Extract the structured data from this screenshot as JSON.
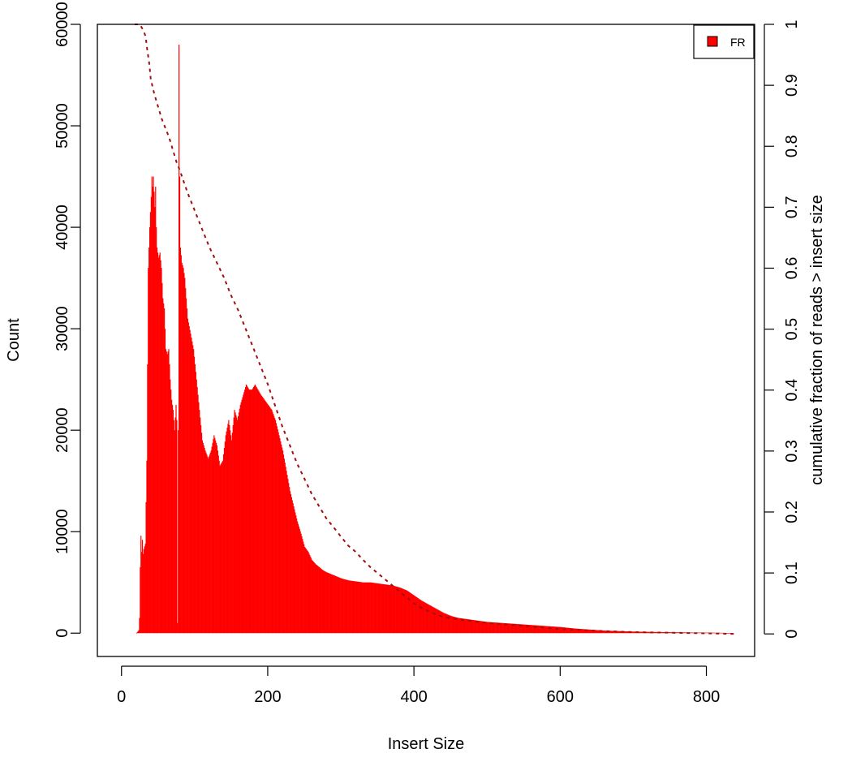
{
  "chart_data": {
    "type": "bar",
    "title": "",
    "xlabel": "Insert Size",
    "ylabel": "Count",
    "y2label": "cumulative fraction of reads > insert size",
    "xlim": [
      -33,
      866
    ],
    "ylim": [
      -2300,
      60000
    ],
    "y2lim": [
      -0.037,
      1.0
    ],
    "xticks": [
      0,
      200,
      400,
      600,
      800
    ],
    "yticks": [
      0,
      10000,
      20000,
      30000,
      40000,
      50000,
      60000
    ],
    "y2ticks": [
      0,
      0.1,
      0.2,
      0.3,
      0.4,
      0.5,
      0.6,
      0.7,
      0.8,
      0.9,
      1
    ],
    "legend": {
      "position": "top-right",
      "entries": [
        "FR"
      ]
    },
    "colors": {
      "bars": "#ff0000",
      "cumulative": "#a01010",
      "legend_box": "#ff0000"
    },
    "series": [
      {
        "name": "FR",
        "kind": "histogram",
        "points": [
          [
            20,
            0
          ],
          [
            23,
            300
          ],
          [
            24,
            1500
          ],
          [
            25,
            6500
          ],
          [
            26,
            9600
          ],
          [
            27,
            8000
          ],
          [
            28,
            9200
          ],
          [
            29,
            7800
          ],
          [
            30,
            8300
          ],
          [
            32,
            8800
          ],
          [
            34,
            17000
          ],
          [
            36,
            36000
          ],
          [
            38,
            40000
          ],
          [
            40,
            43000
          ],
          [
            41,
            45000
          ],
          [
            42,
            44000
          ],
          [
            43,
            45000
          ],
          [
            44,
            43500
          ],
          [
            45,
            42000
          ],
          [
            46,
            44000
          ],
          [
            47,
            40000
          ],
          [
            48,
            38000
          ],
          [
            50,
            37000
          ],
          [
            52,
            37500
          ],
          [
            54,
            36000
          ],
          [
            56,
            33000
          ],
          [
            58,
            32000
          ],
          [
            60,
            28000
          ],
          [
            62,
            27500
          ],
          [
            64,
            28000
          ],
          [
            66,
            25000
          ],
          [
            68,
            23000
          ],
          [
            70,
            22000
          ],
          [
            72,
            20000
          ],
          [
            74,
            22500
          ],
          [
            75,
            21000
          ],
          [
            76,
            1000
          ],
          [
            77,
            20000
          ],
          [
            78,
            58000
          ],
          [
            79,
            45000
          ],
          [
            80,
            38000
          ],
          [
            82,
            36500
          ],
          [
            84,
            36000
          ],
          [
            86,
            35000
          ],
          [
            88,
            33000
          ],
          [
            90,
            31000
          ],
          [
            94,
            29500
          ],
          [
            98,
            28000
          ],
          [
            102,
            25000
          ],
          [
            106,
            22000
          ],
          [
            110,
            19000
          ],
          [
            114,
            18000
          ],
          [
            118,
            17200
          ],
          [
            122,
            18000
          ],
          [
            126,
            19500
          ],
          [
            130,
            18500
          ],
          [
            134,
            16500
          ],
          [
            138,
            17000
          ],
          [
            142,
            19500
          ],
          [
            146,
            21000
          ],
          [
            150,
            19000
          ],
          [
            154,
            22000
          ],
          [
            158,
            21000
          ],
          [
            162,
            22500
          ],
          [
            166,
            23500
          ],
          [
            170,
            24500
          ],
          [
            174,
            24000
          ],
          [
            178,
            24000
          ],
          [
            182,
            24500
          ],
          [
            186,
            24000
          ],
          [
            190,
            23500
          ],
          [
            195,
            23000
          ],
          [
            200,
            22500
          ],
          [
            205,
            22000
          ],
          [
            210,
            21000
          ],
          [
            215,
            19500
          ],
          [
            220,
            18000
          ],
          [
            225,
            16000
          ],
          [
            230,
            14000
          ],
          [
            235,
            12500
          ],
          [
            240,
            11000
          ],
          [
            245,
            9800
          ],
          [
            250,
            8500
          ],
          [
            255,
            8000
          ],
          [
            260,
            7200
          ],
          [
            265,
            6800
          ],
          [
            270,
            6500
          ],
          [
            275,
            6200
          ],
          [
            280,
            6000
          ],
          [
            290,
            5700
          ],
          [
            300,
            5400
          ],
          [
            310,
            5200
          ],
          [
            320,
            5100
          ],
          [
            330,
            5000
          ],
          [
            340,
            5000
          ],
          [
            350,
            4900
          ],
          [
            360,
            4800
          ],
          [
            370,
            4700
          ],
          [
            380,
            4500
          ],
          [
            390,
            4200
          ],
          [
            400,
            3700
          ],
          [
            410,
            3200
          ],
          [
            420,
            2800
          ],
          [
            430,
            2400
          ],
          [
            440,
            2000
          ],
          [
            450,
            1700
          ],
          [
            460,
            1500
          ],
          [
            470,
            1400
          ],
          [
            480,
            1300
          ],
          [
            490,
            1200
          ],
          [
            500,
            1100
          ],
          [
            520,
            1000
          ],
          [
            540,
            900
          ],
          [
            560,
            800
          ],
          [
            580,
            700
          ],
          [
            600,
            600
          ],
          [
            620,
            450
          ],
          [
            640,
            350
          ],
          [
            660,
            250
          ],
          [
            680,
            200
          ],
          [
            700,
            150
          ],
          [
            720,
            120
          ],
          [
            740,
            100
          ],
          [
            760,
            80
          ],
          [
            780,
            60
          ],
          [
            800,
            50
          ],
          [
            820,
            30
          ],
          [
            835,
            0
          ]
        ]
      },
      {
        "name": "",
        "kind": "cumulative",
        "axis": "right",
        "points": [
          [
            18,
            1.0
          ],
          [
            25,
            1.0
          ],
          [
            30,
            0.99
          ],
          [
            33,
            0.98
          ],
          [
            35,
            0.96
          ],
          [
            38,
            0.935
          ],
          [
            40,
            0.91
          ],
          [
            45,
            0.885
          ],
          [
            50,
            0.865
          ],
          [
            55,
            0.845
          ],
          [
            60,
            0.83
          ],
          [
            65,
            0.815
          ],
          [
            70,
            0.795
          ],
          [
            75,
            0.775
          ],
          [
            80,
            0.76
          ],
          [
            90,
            0.725
          ],
          [
            100,
            0.695
          ],
          [
            110,
            0.665
          ],
          [
            120,
            0.635
          ],
          [
            130,
            0.61
          ],
          [
            140,
            0.585
          ],
          [
            150,
            0.555
          ],
          [
            160,
            0.53
          ],
          [
            170,
            0.5
          ],
          [
            180,
            0.47
          ],
          [
            190,
            0.44
          ],
          [
            200,
            0.41
          ],
          [
            210,
            0.375
          ],
          [
            220,
            0.34
          ],
          [
            230,
            0.31
          ],
          [
            240,
            0.28
          ],
          [
            250,
            0.255
          ],
          [
            260,
            0.23
          ],
          [
            270,
            0.21
          ],
          [
            280,
            0.19
          ],
          [
            290,
            0.175
          ],
          [
            300,
            0.16
          ],
          [
            310,
            0.145
          ],
          [
            320,
            0.135
          ],
          [
            330,
            0.122
          ],
          [
            340,
            0.11
          ],
          [
            350,
            0.1
          ],
          [
            360,
            0.09
          ],
          [
            370,
            0.08
          ],
          [
            380,
            0.07
          ],
          [
            390,
            0.06
          ],
          [
            400,
            0.05
          ],
          [
            410,
            0.043
          ],
          [
            420,
            0.037
          ],
          [
            430,
            0.032
          ],
          [
            440,
            0.028
          ],
          [
            460,
            0.024
          ],
          [
            480,
            0.021
          ],
          [
            500,
            0.018
          ],
          [
            550,
            0.013
          ],
          [
            600,
            0.008
          ],
          [
            650,
            0.005
          ],
          [
            700,
            0.003
          ],
          [
            750,
            0.002
          ],
          [
            800,
            0.001
          ],
          [
            840,
            0.0
          ]
        ]
      }
    ]
  }
}
